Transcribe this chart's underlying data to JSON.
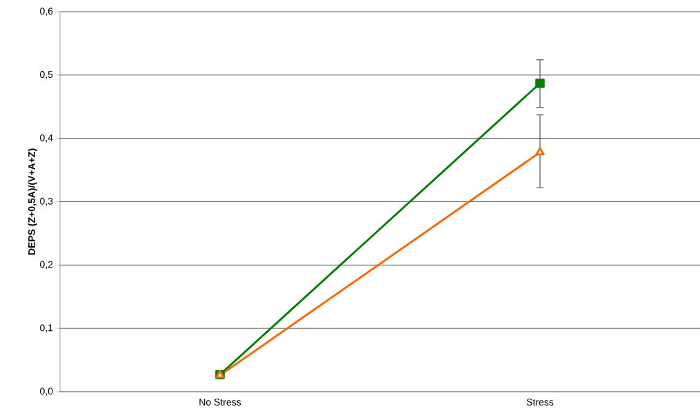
{
  "chart_data": {
    "type": "line",
    "ylabel": "DEPS (Z+0,5A)/(V+A+Z)",
    "categories": [
      "No Stress",
      "Stress"
    ],
    "series": [
      {
        "color": "#008000",
        "marker": "square",
        "values": [
          0.027,
          0.487
        ],
        "errors": [
          null,
          [
            0.449,
            0.524
          ]
        ]
      },
      {
        "color": "#ff6600",
        "marker": "triangle",
        "values": [
          0.026,
          0.378
        ],
        "errors": [
          null,
          [
            0.322,
            0.437
          ]
        ]
      }
    ],
    "ylim": [
      0,
      0.6
    ],
    "yticks": [
      {
        "value": 0,
        "label": "0,0"
      },
      {
        "value": 0.1,
        "label": "0,1"
      },
      {
        "value": 0.2,
        "label": "0,2"
      },
      {
        "value": 0.3,
        "label": "0,3"
      },
      {
        "value": 0.4,
        "label": "0,4"
      },
      {
        "value": 0.5,
        "label": "0,5"
      },
      {
        "value": 0.6,
        "label": "0,6"
      }
    ],
    "grid": "y"
  }
}
